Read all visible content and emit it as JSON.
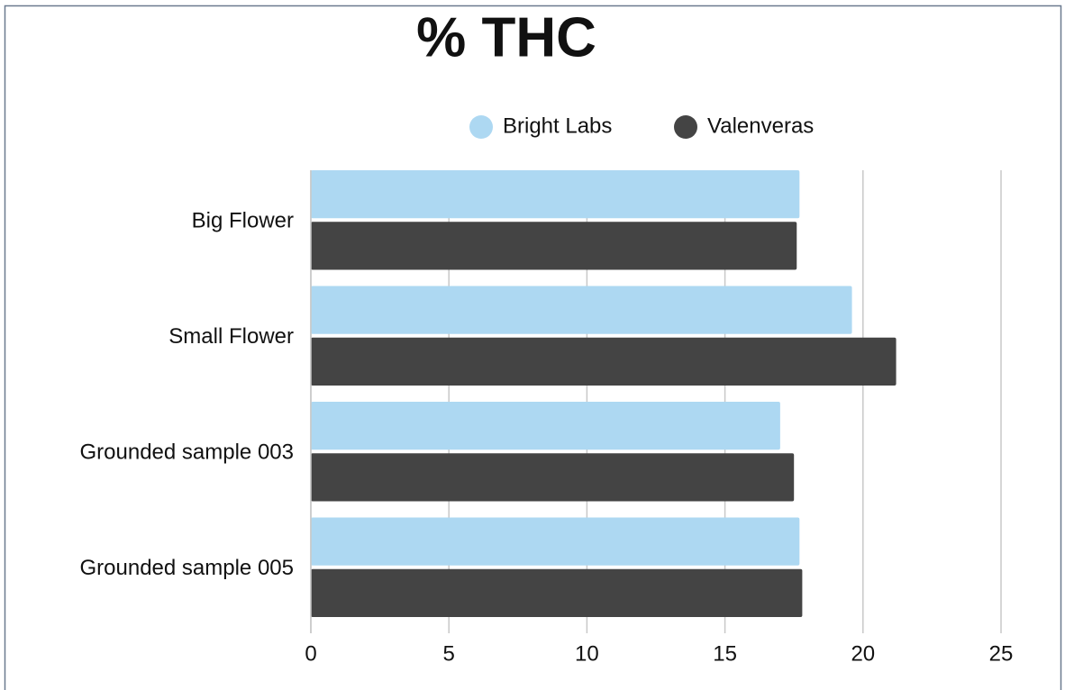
{
  "chart_data": {
    "type": "hbar",
    "title": "% THC",
    "categories": [
      "Big Flower",
      "Small Flower",
      "Grounded sample 003",
      "Grounded sample 005"
    ],
    "series": [
      {
        "name": "Bright Labs",
        "color": "#add8f2",
        "values": [
          17.7,
          19.6,
          17.0,
          17.7
        ]
      },
      {
        "name": "Valenveras",
        "color": "#444444",
        "values": [
          17.6,
          21.2,
          17.5,
          17.8
        ]
      }
    ],
    "xlim": [
      0,
      25
    ],
    "xticks": [
      0,
      5,
      10,
      15,
      20,
      25
    ],
    "grid": true,
    "legend": "top"
  }
}
